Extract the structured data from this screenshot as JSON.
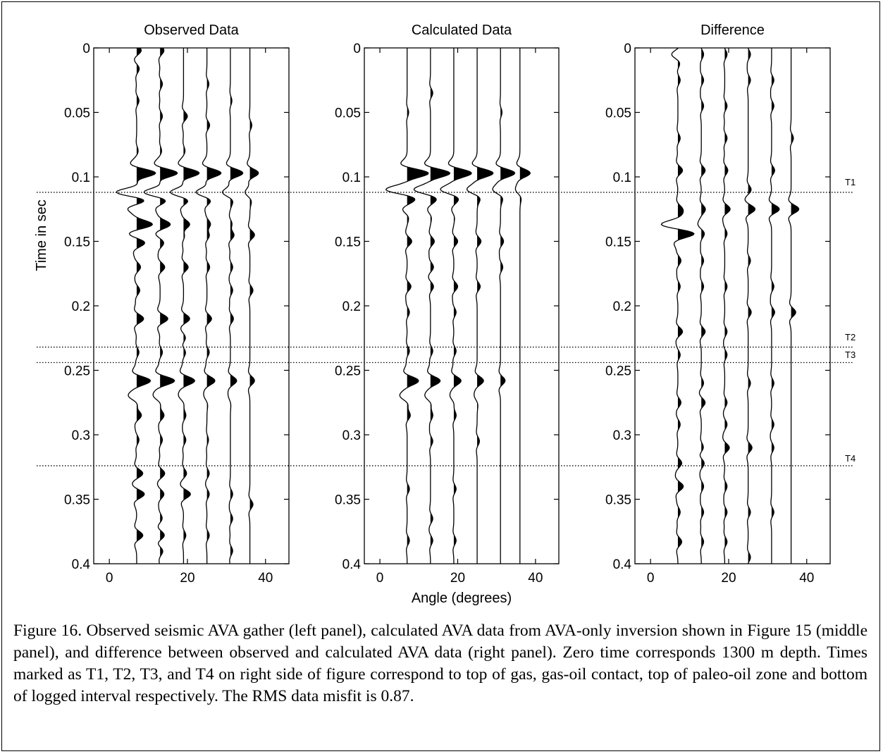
{
  "chart_data": {
    "type": "line",
    "ylabel": "Time in sec",
    "xlabel": "Angle (degrees)",
    "ylim": [
      0,
      0.4
    ],
    "xlim": [
      -4,
      46
    ],
    "y_ticks": [
      0,
      0.05,
      0.1,
      0.15,
      0.2,
      0.25,
      0.3,
      0.35,
      0.4
    ],
    "x_ticks": [
      0,
      20,
      40
    ],
    "trace_angles": [
      7,
      13,
      19,
      25,
      31,
      36
    ],
    "markers": [
      {
        "label": "T1",
        "time": 0.112
      },
      {
        "label": "T2",
        "time": 0.232
      },
      {
        "label": "T3",
        "time": 0.244
      },
      {
        "label": "T4",
        "time": 0.324
      }
    ],
    "panels": [
      {
        "title": "Observed Data",
        "events": [
          {
            "t": 0.002,
            "amps": [
              0.6,
              0.5,
              0,
              0,
              0,
              0
            ]
          },
          {
            "t": 0.016,
            "amps": [
              0.35,
              0,
              0,
              0,
              0,
              0
            ]
          },
          {
            "t": 0.028,
            "amps": [
              0,
              0.3,
              0,
              0.25,
              0,
              0
            ]
          },
          {
            "t": 0.041,
            "amps": [
              0.3,
              0,
              0,
              0,
              0.2,
              0
            ]
          },
          {
            "t": 0.053,
            "amps": [
              0,
              0.3,
              0.5,
              0,
              0,
              0
            ]
          },
          {
            "t": 0.06,
            "amps": [
              0,
              0,
              0,
              0.35,
              0,
              0.25
            ]
          },
          {
            "t": 0.08,
            "amps": [
              0.2,
              0.2,
              0.2,
              0,
              0,
              0
            ]
          },
          {
            "t": 0.097,
            "amps": [
              2.4,
              2.2,
              2.0,
              1.8,
              1.6,
              1.1
            ]
          },
          {
            "t": 0.112,
            "amps": [
              -2.7,
              -2.1,
              -1.7,
              -1.4,
              -1.0,
              -0.6
            ]
          },
          {
            "t": 0.124,
            "amps": [
              -1.2,
              -0.6,
              -0.4,
              -0.3,
              0,
              0
            ]
          },
          {
            "t": 0.137,
            "amps": [
              2.0,
              1.3,
              0.9,
              0.6,
              0.4,
              0
            ]
          },
          {
            "t": 0.145,
            "amps": [
              0,
              0,
              0.4,
              0.5,
              0.6,
              0.6
            ]
          },
          {
            "t": 0.151,
            "amps": [
              1.1,
              0.5,
              0,
              0,
              0,
              0
            ]
          },
          {
            "t": 0.17,
            "amps": [
              0.5,
              0.6,
              0.6,
              0.35,
              0.3,
              0
            ]
          },
          {
            "t": 0.188,
            "amps": [
              0.4,
              0,
              0,
              0,
              0.3,
              0.4
            ]
          },
          {
            "t": 0.21,
            "amps": [
              0.9,
              1.0,
              0.8,
              0.6,
              0.4,
              0
            ]
          },
          {
            "t": 0.225,
            "amps": [
              0,
              0,
              0.3,
              0,
              0,
              0
            ]
          },
          {
            "t": 0.236,
            "amps": [
              0.3,
              0.3,
              0.3,
              0.3,
              0,
              0
            ]
          },
          {
            "t": 0.258,
            "amps": [
              1.7,
              1.8,
              1.4,
              1.0,
              0.8,
              0.6
            ]
          },
          {
            "t": 0.27,
            "amps": [
              -0.9,
              -0.7,
              -0.5,
              -0.3,
              -0.2,
              0
            ]
          },
          {
            "t": 0.285,
            "amps": [
              0.6,
              0.5,
              0.3,
              0,
              0,
              0
            ]
          },
          {
            "t": 0.304,
            "amps": [
              0.3,
              0.3,
              0.3,
              0.2,
              0,
              0
            ]
          },
          {
            "t": 0.33,
            "amps": [
              0.8,
              0.6,
              0.4,
              0.3,
              0,
              0
            ]
          },
          {
            "t": 0.346,
            "amps": [
              1.0,
              0.5,
              0.9,
              0.3,
              0.3,
              0
            ]
          },
          {
            "t": 0.354,
            "amps": [
              0,
              0,
              0,
              0,
              0,
              0.4
            ]
          },
          {
            "t": 0.365,
            "amps": [
              0,
              0.3,
              0,
              0,
              0.3,
              0
            ]
          },
          {
            "t": 0.378,
            "amps": [
              0.8,
              0.6,
              0.3,
              0.3,
              0,
              0
            ]
          },
          {
            "t": 0.39,
            "amps": [
              0,
              0.4,
              0,
              0,
              0.3,
              0
            ]
          }
        ]
      },
      {
        "title": "Calculated Data",
        "events": [
          {
            "t": 0.035,
            "amps": [
              0,
              0.3,
              0,
              0,
              0,
              0
            ]
          },
          {
            "t": 0.05,
            "amps": [
              0.2,
              0,
              0,
              0,
              0.2,
              0
            ]
          },
          {
            "t": 0.097,
            "amps": [
              2.6,
              2.4,
              2.2,
              2.0,
              1.8,
              1.3
            ]
          },
          {
            "t": 0.11,
            "amps": [
              -2.6,
              -2.0,
              -1.6,
              -1.2,
              -0.9,
              -0.5
            ]
          },
          {
            "t": 0.125,
            "amps": [
              -0.6,
              -0.4,
              -0.3,
              0,
              0,
              0
            ]
          },
          {
            "t": 0.15,
            "amps": [
              0.6,
              0.5,
              0.5,
              0.5,
              0.4,
              0
            ]
          },
          {
            "t": 0.17,
            "amps": [
              0,
              0.4,
              0,
              0,
              0.3,
              0
            ]
          },
          {
            "t": 0.185,
            "amps": [
              0.5,
              0.4,
              0.5,
              0.4,
              0,
              0
            ]
          },
          {
            "t": 0.205,
            "amps": [
              0.3,
              0,
              0.3,
              0,
              0,
              0
            ]
          },
          {
            "t": 0.235,
            "amps": [
              0.3,
              0.3,
              0.3,
              0,
              0,
              0
            ]
          },
          {
            "t": 0.258,
            "amps": [
              1.4,
              1.2,
              0.9,
              0.8,
              0.6,
              0
            ]
          },
          {
            "t": 0.27,
            "amps": [
              -0.8,
              -0.6,
              -0.4,
              -0.3,
              0,
              0
            ]
          },
          {
            "t": 0.285,
            "amps": [
              0.4,
              0.3,
              0.3,
              0,
              0,
              0
            ]
          },
          {
            "t": 0.305,
            "amps": [
              0,
              0.3,
              0,
              0.3,
              0,
              0
            ]
          },
          {
            "t": 0.342,
            "amps": [
              0.3,
              0,
              0.3,
              0,
              0,
              0
            ]
          },
          {
            "t": 0.365,
            "amps": [
              0,
              0.3,
              0,
              0,
              0,
              0
            ]
          },
          {
            "t": 0.382,
            "amps": [
              0.3,
              0.3,
              0.3,
              0,
              0,
              0
            ]
          }
        ]
      },
      {
        "title": "Difference",
        "events": [
          {
            "t": 0.005,
            "amps": [
              -0.8,
              0.3,
              0.3,
              0.3,
              0,
              0
            ]
          },
          {
            "t": 0.025,
            "amps": [
              0.3,
              0.3,
              0,
              0.3,
              0.3,
              0
            ]
          },
          {
            "t": 0.045,
            "amps": [
              0,
              0.3,
              0.3,
              0,
              0.3,
              0
            ]
          },
          {
            "t": 0.07,
            "amps": [
              0.3,
              0,
              0.3,
              0,
              0,
              0.3
            ]
          },
          {
            "t": 0.095,
            "amps": [
              0.6,
              0.5,
              0.4,
              0,
              0.4,
              0
            ]
          },
          {
            "t": 0.11,
            "amps": [
              0,
              0,
              0,
              0.4,
              0,
              0
            ]
          },
          {
            "t": 0.125,
            "amps": [
              0.5,
              0.5,
              0.7,
              0.9,
              1.0,
              1.0
            ]
          },
          {
            "t": 0.137,
            "amps": [
              -1.6,
              -0.3,
              0,
              0,
              0,
              0
            ]
          },
          {
            "t": 0.144,
            "amps": [
              1.6,
              0.3,
              0.3,
              0,
              0,
              0
            ]
          },
          {
            "t": 0.165,
            "amps": [
              0.4,
              0.3,
              0,
              0.3,
              0,
              0
            ]
          },
          {
            "t": 0.185,
            "amps": [
              0.3,
              0.3,
              0.3,
              0,
              0.3,
              0
            ]
          },
          {
            "t": 0.205,
            "amps": [
              0,
              0,
              0,
              0.4,
              0.4,
              0.6
            ]
          },
          {
            "t": 0.22,
            "amps": [
              0.6,
              0.5,
              0.3,
              0,
              0,
              0
            ]
          },
          {
            "t": 0.238,
            "amps": [
              0.3,
              0,
              0.3,
              0,
              0,
              0
            ]
          },
          {
            "t": 0.26,
            "amps": [
              0,
              0.3,
              0,
              0.3,
              0.3,
              0
            ]
          },
          {
            "t": 0.275,
            "amps": [
              0.4,
              0.5,
              0.3,
              0,
              0,
              0
            ]
          },
          {
            "t": 0.292,
            "amps": [
              0.3,
              0,
              0.3,
              0,
              0.3,
              0
            ]
          },
          {
            "t": 0.31,
            "amps": [
              0,
              0.3,
              0.6,
              0.5,
              0.3,
              0
            ]
          },
          {
            "t": 0.322,
            "amps": [
              0.5,
              0.4,
              0,
              0,
              0,
              0
            ]
          },
          {
            "t": 0.34,
            "amps": [
              0.7,
              0.3,
              0.3,
              0,
              0,
              0
            ]
          },
          {
            "t": 0.36,
            "amps": [
              0.3,
              0.3,
              0.3,
              0.3,
              0.3,
              0
            ]
          },
          {
            "t": 0.383,
            "amps": [
              0.5,
              0.3,
              0.3,
              0,
              0,
              0
            ]
          },
          {
            "t": 0.395,
            "amps": [
              0,
              0,
              0,
              0.3,
              0,
              0
            ]
          }
        ]
      }
    ]
  },
  "caption": "Figure 16.  Observed seismic AVA gather (left panel), calculated AVA data from AVA-only inversion shown in Figure 15 (middle panel), and difference between observed and calculated AVA data (right panel).  Zero time corresponds 1300 m depth.  Times marked as T1, T2, T3, and T4 on right side of figure correspond to top of gas, gas-oil contact, top of paleo-oil zone and bottom of logged interval respectively.  The RMS data misfit is 0.87."
}
